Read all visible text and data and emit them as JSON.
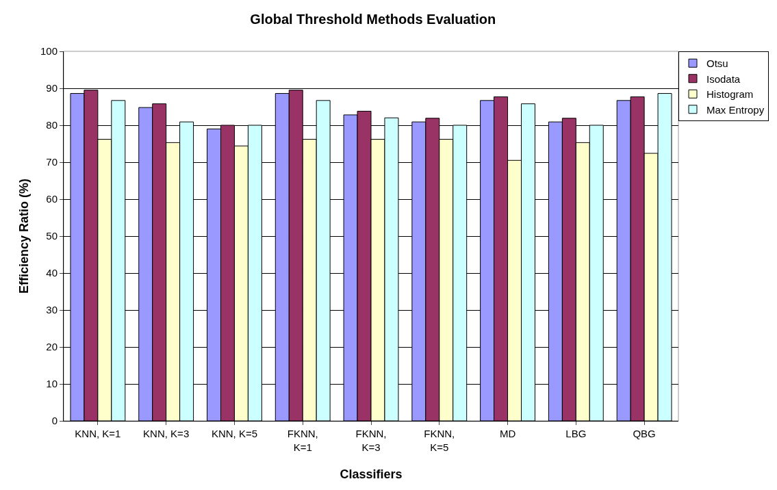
{
  "chart_data": {
    "type": "bar",
    "title": "Global Threshold Methods Evaluation",
    "xlabel": "Classifiers",
    "ylabel": "Efficiency Ratio (%)",
    "categories": [
      "KNN, K=1",
      "KNN, K=3",
      "KNN, K=5",
      "FKNN, K=1",
      "FKNN, K=3",
      "FKNN, K=5",
      "MD",
      "LBG",
      "QBG"
    ],
    "series": [
      {
        "name": "Otsu",
        "color": "#9999ff",
        "values": [
          88.6,
          84.8,
          79.0,
          88.6,
          82.8,
          80.9,
          86.7,
          80.9,
          86.7
        ]
      },
      {
        "name": "Isodata",
        "color": "#993366",
        "values": [
          89.5,
          85.8,
          80.0,
          89.5,
          83.8,
          81.9,
          87.7,
          81.9,
          87.7
        ]
      },
      {
        "name": "Histogram",
        "color": "#ffffcc",
        "values": [
          76.2,
          75.3,
          74.4,
          76.2,
          76.2,
          76.2,
          70.5,
          75.3,
          72.4
        ]
      },
      {
        "name": "Max Entropy",
        "color": "#ccffff",
        "values": [
          86.7,
          80.9,
          80.0,
          86.7,
          82.0,
          80.0,
          85.8,
          80.0,
          88.6
        ]
      }
    ],
    "ylim": [
      0,
      100
    ],
    "yticks": [
      0,
      10,
      20,
      30,
      40,
      50,
      60,
      70,
      80,
      90,
      100
    ],
    "grid": "y",
    "legend": "top right"
  }
}
